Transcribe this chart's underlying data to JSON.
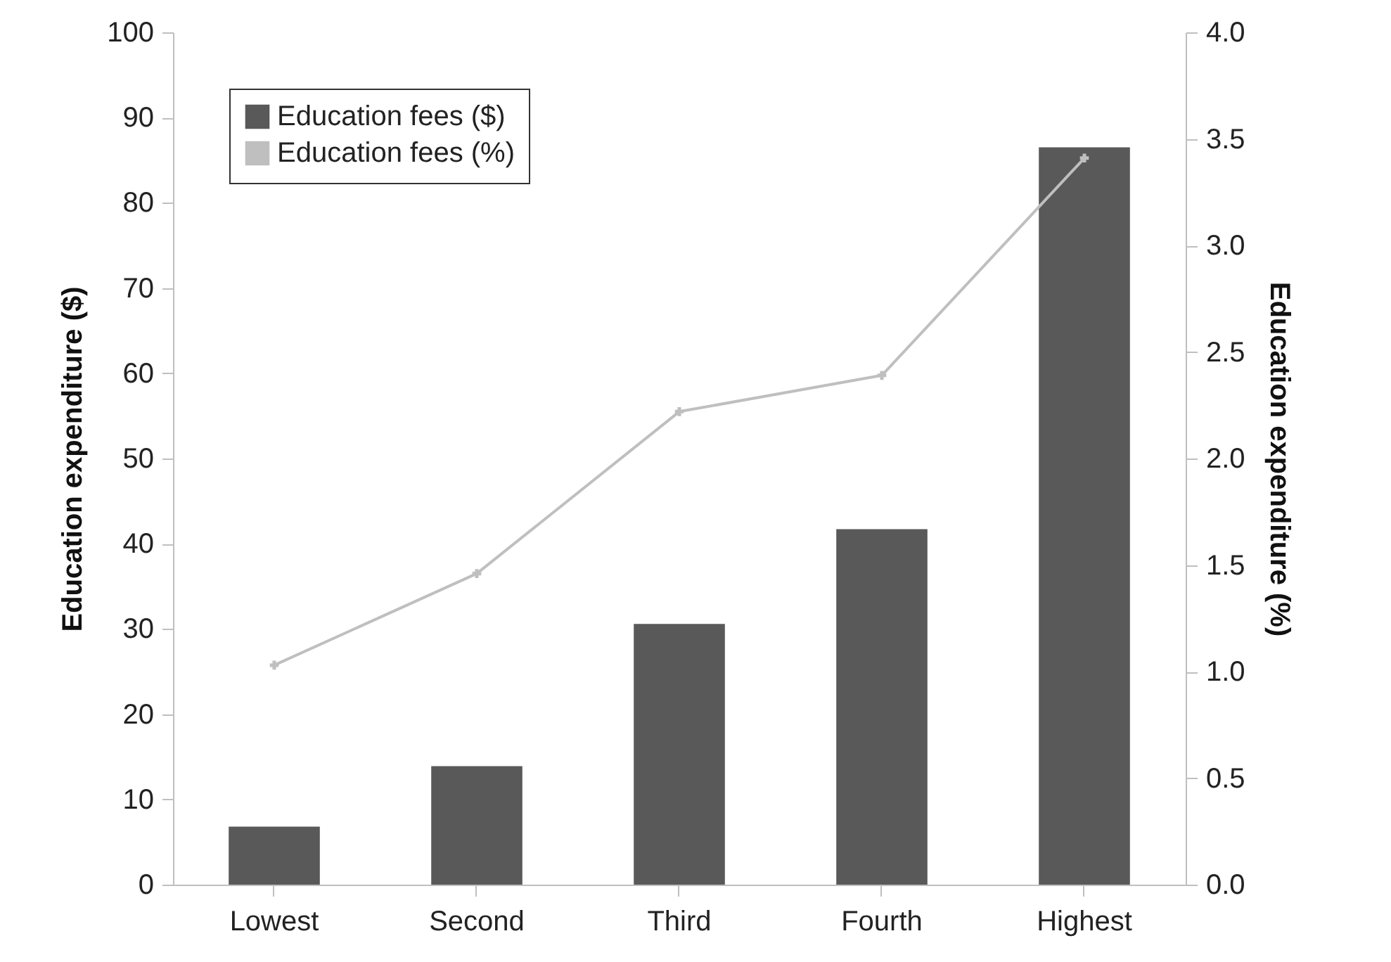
{
  "chart_data": {
    "type": "bar",
    "xlabel": null,
    "ylabel": "Education expenditure ($)",
    "y2label": "Education expenditure (%)",
    "categories": [
      "Lowest",
      "Second",
      "Third",
      "Fourth",
      "Highest"
    ],
    "series": [
      {
        "name": "Education fees ($)",
        "color": "#595959",
        "values": [
          6.8,
          13.9,
          30.6,
          41.7,
          86.5
        ]
      },
      {
        "name": "Education fees (%)",
        "type": "line",
        "axis": "y2",
        "color": "#bfbfbf",
        "marker": "cross",
        "values": [
          1.03,
          1.46,
          2.22,
          2.39,
          3.41
        ]
      }
    ],
    "ylim": [
      0,
      100
    ],
    "yticks": [
      0,
      10,
      20,
      30,
      40,
      50,
      60,
      70,
      80,
      90,
      100
    ],
    "y2lim": [
      0,
      4
    ],
    "y2ticks": [
      {
        "value": 0,
        "label": "0.0"
      },
      {
        "value": 0.5,
        "label": "0.5"
      },
      {
        "value": 1,
        "label": "1.0"
      },
      {
        "value": 1.5,
        "label": "1.5"
      },
      {
        "value": 2,
        "label": "2.0"
      },
      {
        "value": 2.5,
        "label": "2.5"
      },
      {
        "value": 3,
        "label": "3.0"
      },
      {
        "value": 3.5,
        "label": "3.5"
      },
      {
        "value": 4,
        "label": "4.0"
      }
    ],
    "legend": "top left",
    "grid": false
  }
}
